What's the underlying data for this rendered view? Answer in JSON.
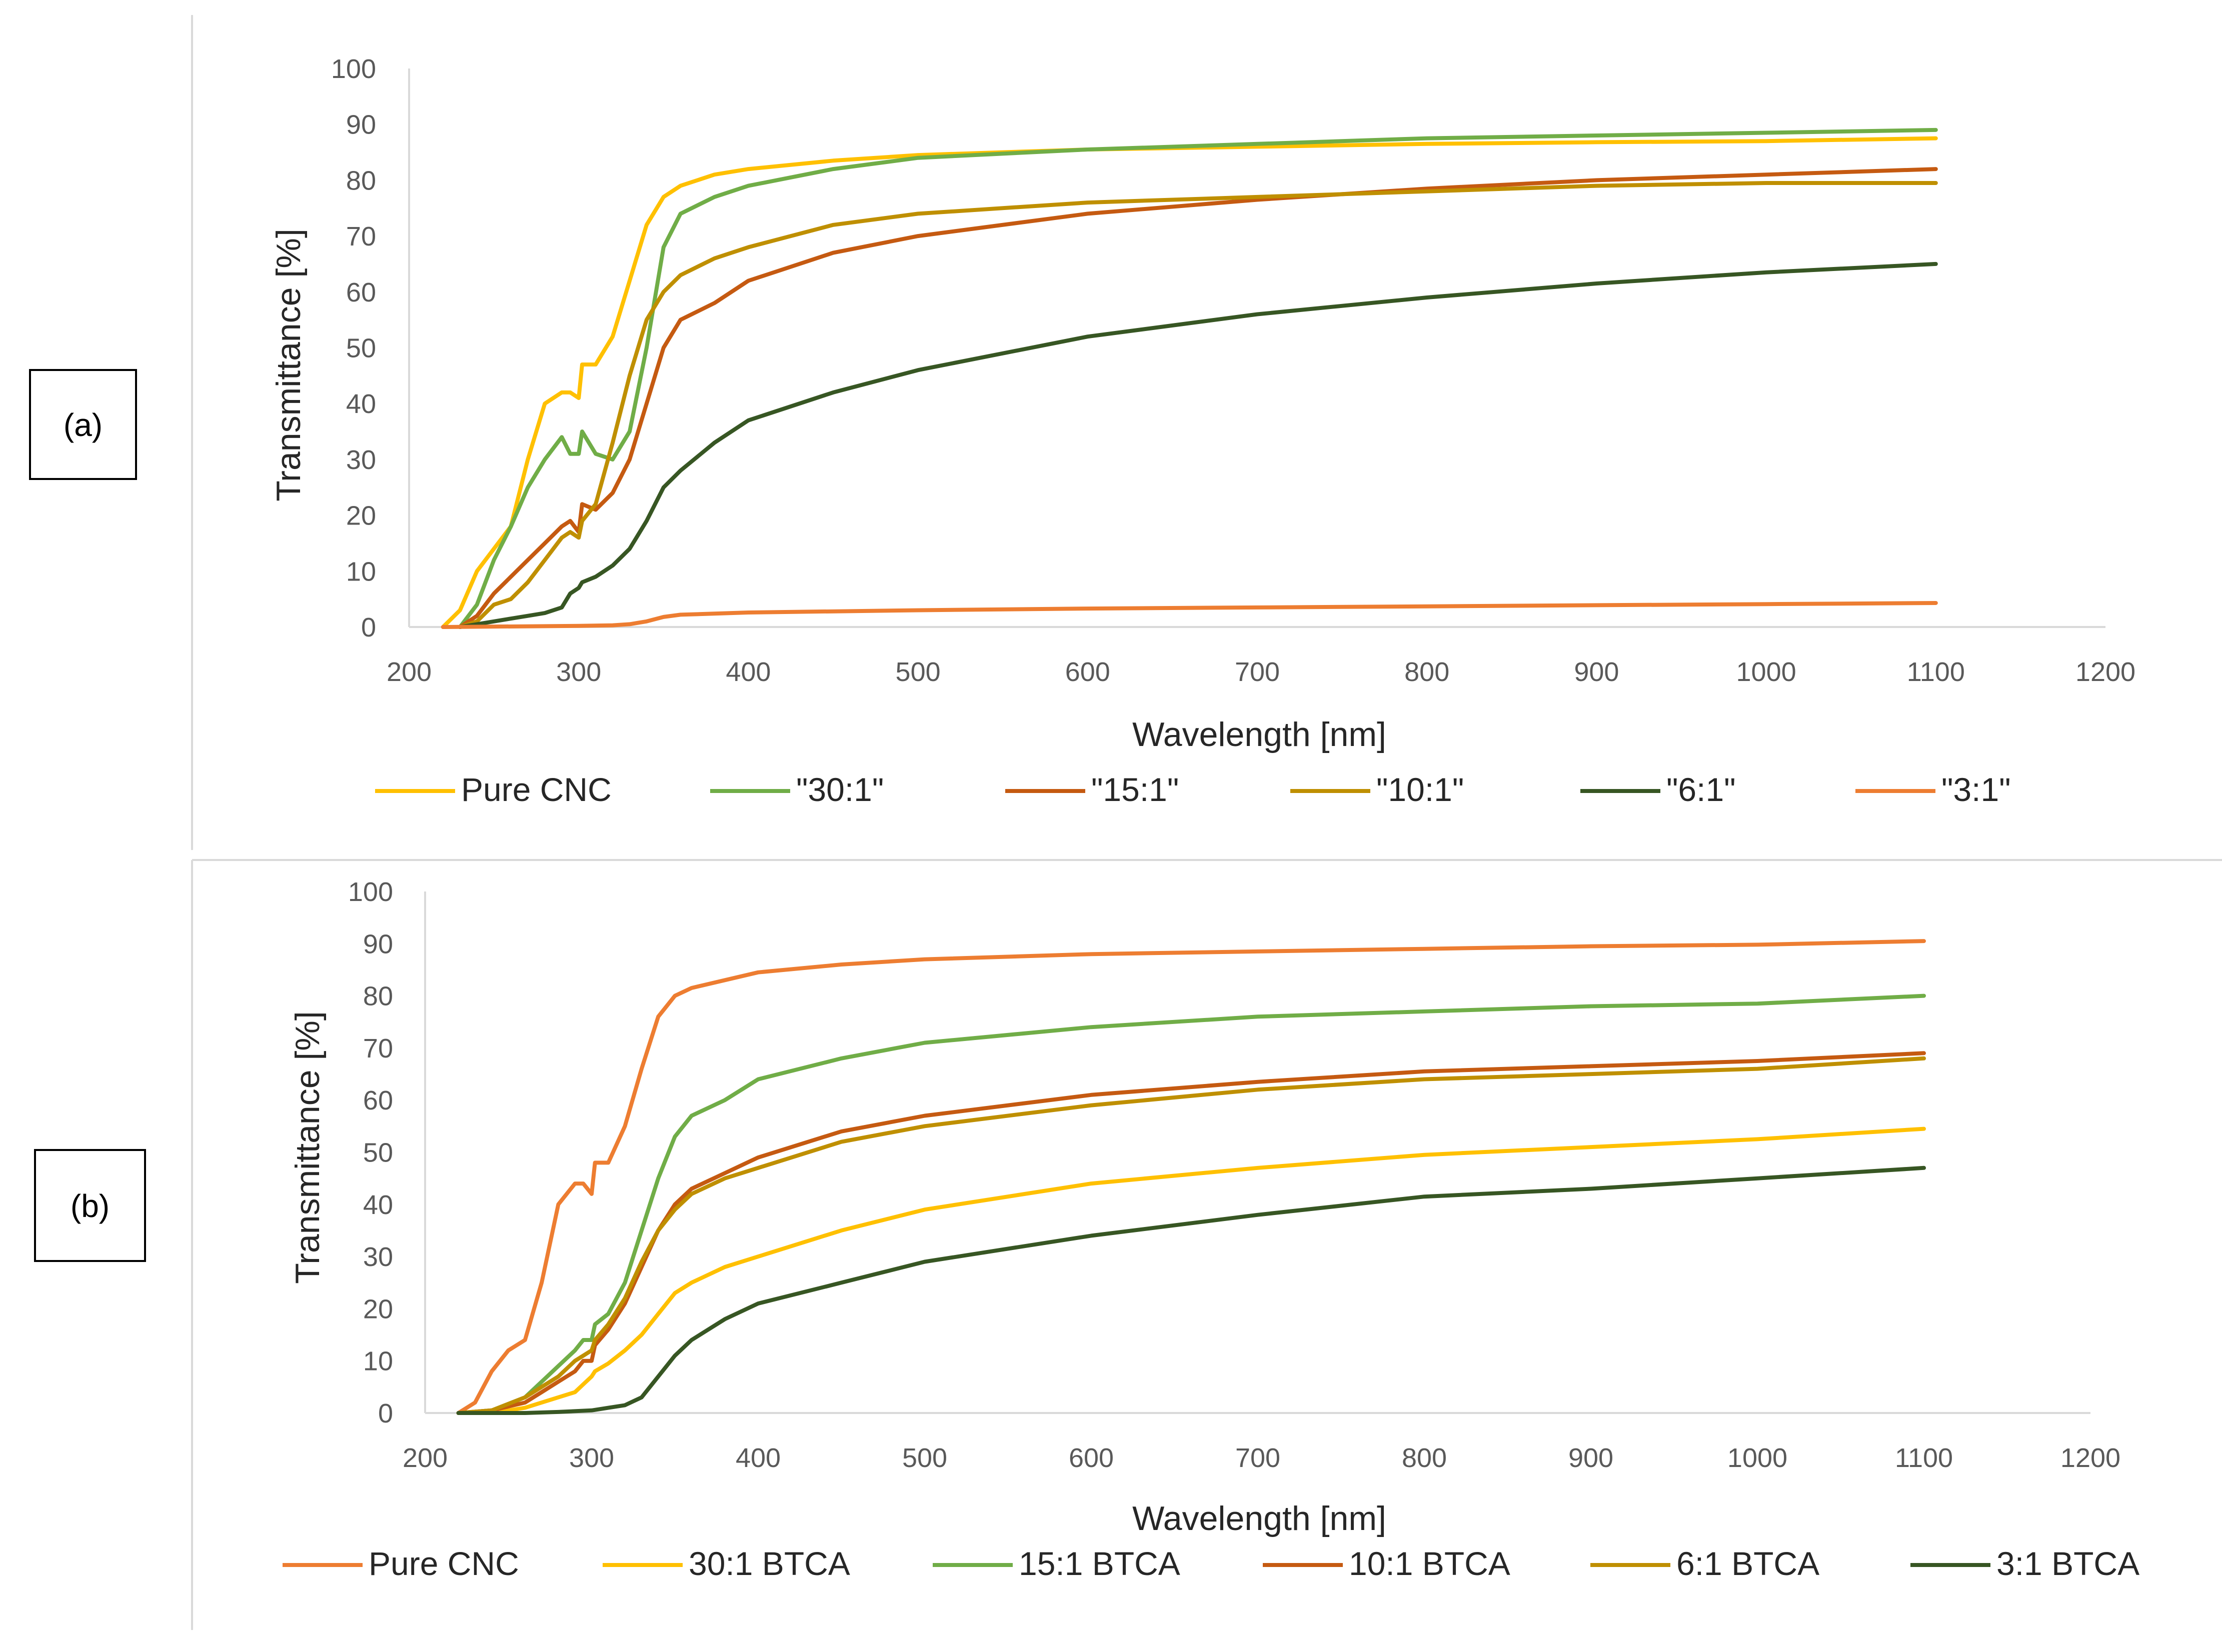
{
  "colors": {
    "yellow": "#FFC000",
    "light_green": "#70AD47",
    "brown": "#C55A11",
    "olive": "#BF8F00",
    "dark_green": "#375623",
    "orange": "#ED7D31",
    "axis": "#D9D9D9",
    "border": "#D9D9D9"
  },
  "chart_data": [
    {
      "type": "line",
      "panel_label": "(a)",
      "xlabel": "Wavelength [nm]",
      "ylabel": "Transmittance [%]",
      "xlim": [
        200,
        1200
      ],
      "ylim": [
        0,
        100
      ],
      "xticks": [
        200,
        300,
        400,
        500,
        600,
        700,
        800,
        900,
        1000,
        1100,
        1200
      ],
      "yticks": [
        0,
        10,
        20,
        30,
        40,
        50,
        60,
        70,
        80,
        90,
        100
      ],
      "legend_position": "bottom",
      "series": [
        {
          "name": "Pure CNC",
          "color": "#FFC000",
          "x": [
            220,
            230,
            240,
            250,
            260,
            270,
            280,
            290,
            295,
            300,
            302,
            310,
            320,
            330,
            340,
            350,
            360,
            380,
            400,
            450,
            500,
            600,
            700,
            800,
            900,
            1000,
            1100
          ],
          "y": [
            0,
            3,
            10,
            14,
            18,
            30,
            40,
            42,
            42,
            41,
            47,
            47,
            52,
            62,
            72,
            77,
            79,
            81,
            82,
            83.5,
            84.5,
            85.5,
            86,
            86.5,
            86.8,
            87,
            87.5
          ]
        },
        {
          "name": "\"30:1\"",
          "color": "#70AD47",
          "x": [
            230,
            240,
            250,
            260,
            270,
            280,
            290,
            295,
            300,
            302,
            310,
            320,
            330,
            340,
            350,
            360,
            380,
            400,
            450,
            500,
            600,
            700,
            800,
            900,
            1000,
            1100
          ],
          "y": [
            0,
            4,
            12,
            18,
            25,
            30,
            34,
            31,
            31,
            35,
            31,
            30,
            35,
            50,
            68,
            74,
            77,
            79,
            82,
            84,
            85.5,
            86.5,
            87.5,
            88,
            88.5,
            89
          ]
        },
        {
          "name": "\"15:1\"",
          "color": "#C55A11",
          "x": [
            230,
            240,
            250,
            260,
            270,
            280,
            290,
            295,
            300,
            302,
            310,
            320,
            330,
            340,
            350,
            360,
            380,
            400,
            450,
            500,
            600,
            700,
            800,
            900,
            1000,
            1100
          ],
          "y": [
            0,
            2,
            6,
            9,
            12,
            15,
            18,
            19,
            17,
            22,
            21,
            24,
            30,
            40,
            50,
            55,
            58,
            62,
            67,
            70,
            74,
            76.5,
            78.5,
            80,
            81,
            82
          ]
        },
        {
          "name": "\"10:1\"",
          "color": "#BF8F00",
          "x": [
            230,
            240,
            250,
            260,
            270,
            280,
            290,
            295,
            300,
            302,
            310,
            320,
            330,
            340,
            350,
            360,
            380,
            400,
            450,
            500,
            600,
            700,
            800,
            900,
            1000,
            1100
          ],
          "y": [
            0,
            1,
            4,
            5,
            8,
            12,
            16,
            17,
            16,
            19,
            22,
            33,
            45,
            55,
            60,
            63,
            66,
            68,
            72,
            74,
            76,
            77,
            78,
            79,
            79.5,
            79.5
          ]
        },
        {
          "name": "\"6:1\"",
          "color": "#375623",
          "x": [
            230,
            240,
            250,
            260,
            270,
            280,
            290,
            295,
            300,
            302,
            310,
            320,
            330,
            340,
            350,
            360,
            380,
            400,
            450,
            500,
            600,
            700,
            800,
            900,
            1000,
            1100
          ],
          "y": [
            0,
            0.5,
            1,
            1.5,
            2,
            2.5,
            3.5,
            6,
            7,
            8,
            9,
            11,
            14,
            19,
            25,
            28,
            33,
            37,
            42,
            46,
            52,
            56,
            59,
            61.5,
            63.5,
            65
          ]
        },
        {
          "name": "\"3:1\"",
          "color": "#ED7D31",
          "x": [
            220,
            300,
            320,
            330,
            340,
            350,
            360,
            400,
            500,
            600,
            700,
            800,
            900,
            1000,
            1100
          ],
          "y": [
            0,
            0.2,
            0.3,
            0.5,
            1,
            1.8,
            2.2,
            2.6,
            3,
            3.3,
            3.5,
            3.7,
            3.9,
            4.1,
            4.3
          ]
        }
      ]
    },
    {
      "type": "line",
      "panel_label": "(b)",
      "xlabel": "Wavelength [nm]",
      "ylabel": "Transmittance [%]",
      "xlim": [
        200,
        1200
      ],
      "ylim": [
        0,
        100
      ],
      "xticks": [
        200,
        300,
        400,
        500,
        600,
        700,
        800,
        900,
        1000,
        1100,
        1200
      ],
      "yticks": [
        0,
        10,
        20,
        30,
        40,
        50,
        60,
        70,
        80,
        90,
        100
      ],
      "legend_position": "bottom",
      "series": [
        {
          "name": "Pure CNC",
          "color": "#ED7D31",
          "x": [
            220,
            230,
            240,
            250,
            260,
            270,
            280,
            290,
            295,
            300,
            302,
            310,
            320,
            330,
            340,
            350,
            360,
            380,
            400,
            450,
            500,
            600,
            700,
            800,
            900,
            1000,
            1100
          ],
          "y": [
            0,
            2,
            8,
            12,
            14,
            25,
            40,
            44,
            44,
            42,
            48,
            48,
            55,
            66,
            76,
            80,
            81.5,
            83,
            84.5,
            86,
            87,
            88,
            88.5,
            89,
            89.5,
            89.8,
            90.5
          ]
        },
        {
          "name": "30:1 BTCA",
          "color": "#FFC000",
          "x": [
            220,
            240,
            260,
            270,
            280,
            290,
            295,
            300,
            302,
            310,
            320,
            330,
            340,
            350,
            360,
            380,
            400,
            450,
            500,
            600,
            700,
            800,
            900,
            1000,
            1100
          ],
          "y": [
            0,
            0,
            1,
            2,
            3,
            4,
            5.5,
            7,
            8,
            9.5,
            12,
            15,
            19,
            23,
            25,
            28,
            30,
            35,
            39,
            44,
            47,
            49.5,
            51,
            52.5,
            54.5
          ]
        },
        {
          "name": "15:1 BTCA",
          "color": "#70AD47",
          "x": [
            220,
            240,
            260,
            270,
            280,
            290,
            295,
            300,
            302,
            310,
            320,
            330,
            340,
            350,
            360,
            380,
            400,
            450,
            500,
            600,
            700,
            800,
            900,
            1000,
            1100
          ],
          "y": [
            0,
            0.5,
            3,
            6,
            9,
            12,
            14,
            14,
            17,
            19,
            25,
            35,
            45,
            53,
            57,
            60,
            64,
            68,
            71,
            74,
            76,
            77,
            78,
            78.5,
            80
          ]
        },
        {
          "name": "10:1 BTCA",
          "color": "#C55A11",
          "x": [
            220,
            240,
            260,
            270,
            280,
            290,
            295,
            300,
            302,
            310,
            320,
            330,
            340,
            350,
            360,
            380,
            400,
            450,
            500,
            600,
            700,
            800,
            900,
            1000,
            1100
          ],
          "y": [
            0,
            0.5,
            2,
            4,
            6,
            8,
            10,
            10,
            13,
            16,
            21,
            28,
            35,
            40,
            43,
            46,
            49,
            54,
            57,
            61,
            63.5,
            65.5,
            66.5,
            67.5,
            69
          ]
        },
        {
          "name": "6:1 BTCA",
          "color": "#BF8F00",
          "x": [
            220,
            240,
            260,
            270,
            280,
            290,
            295,
            300,
            302,
            310,
            320,
            330,
            340,
            350,
            360,
            380,
            400,
            450,
            500,
            600,
            700,
            800,
            900,
            1000,
            1100
          ],
          "y": [
            0,
            0.5,
            3,
            5,
            7,
            10,
            11,
            12,
            14,
            17,
            22,
            29,
            35,
            39,
            42,
            45,
            47,
            52,
            55,
            59,
            62,
            64,
            65,
            66,
            68
          ]
        },
        {
          "name": "3:1 BTCA",
          "color": "#375623",
          "x": [
            220,
            260,
            280,
            300,
            310,
            320,
            330,
            340,
            350,
            360,
            380,
            400,
            450,
            500,
            600,
            700,
            800,
            900,
            1000,
            1100
          ],
          "y": [
            0,
            0,
            0.2,
            0.5,
            1,
            1.5,
            3,
            7,
            11,
            14,
            18,
            21,
            25,
            29,
            34,
            38,
            41.5,
            43,
            45,
            47
          ]
        }
      ]
    }
  ]
}
